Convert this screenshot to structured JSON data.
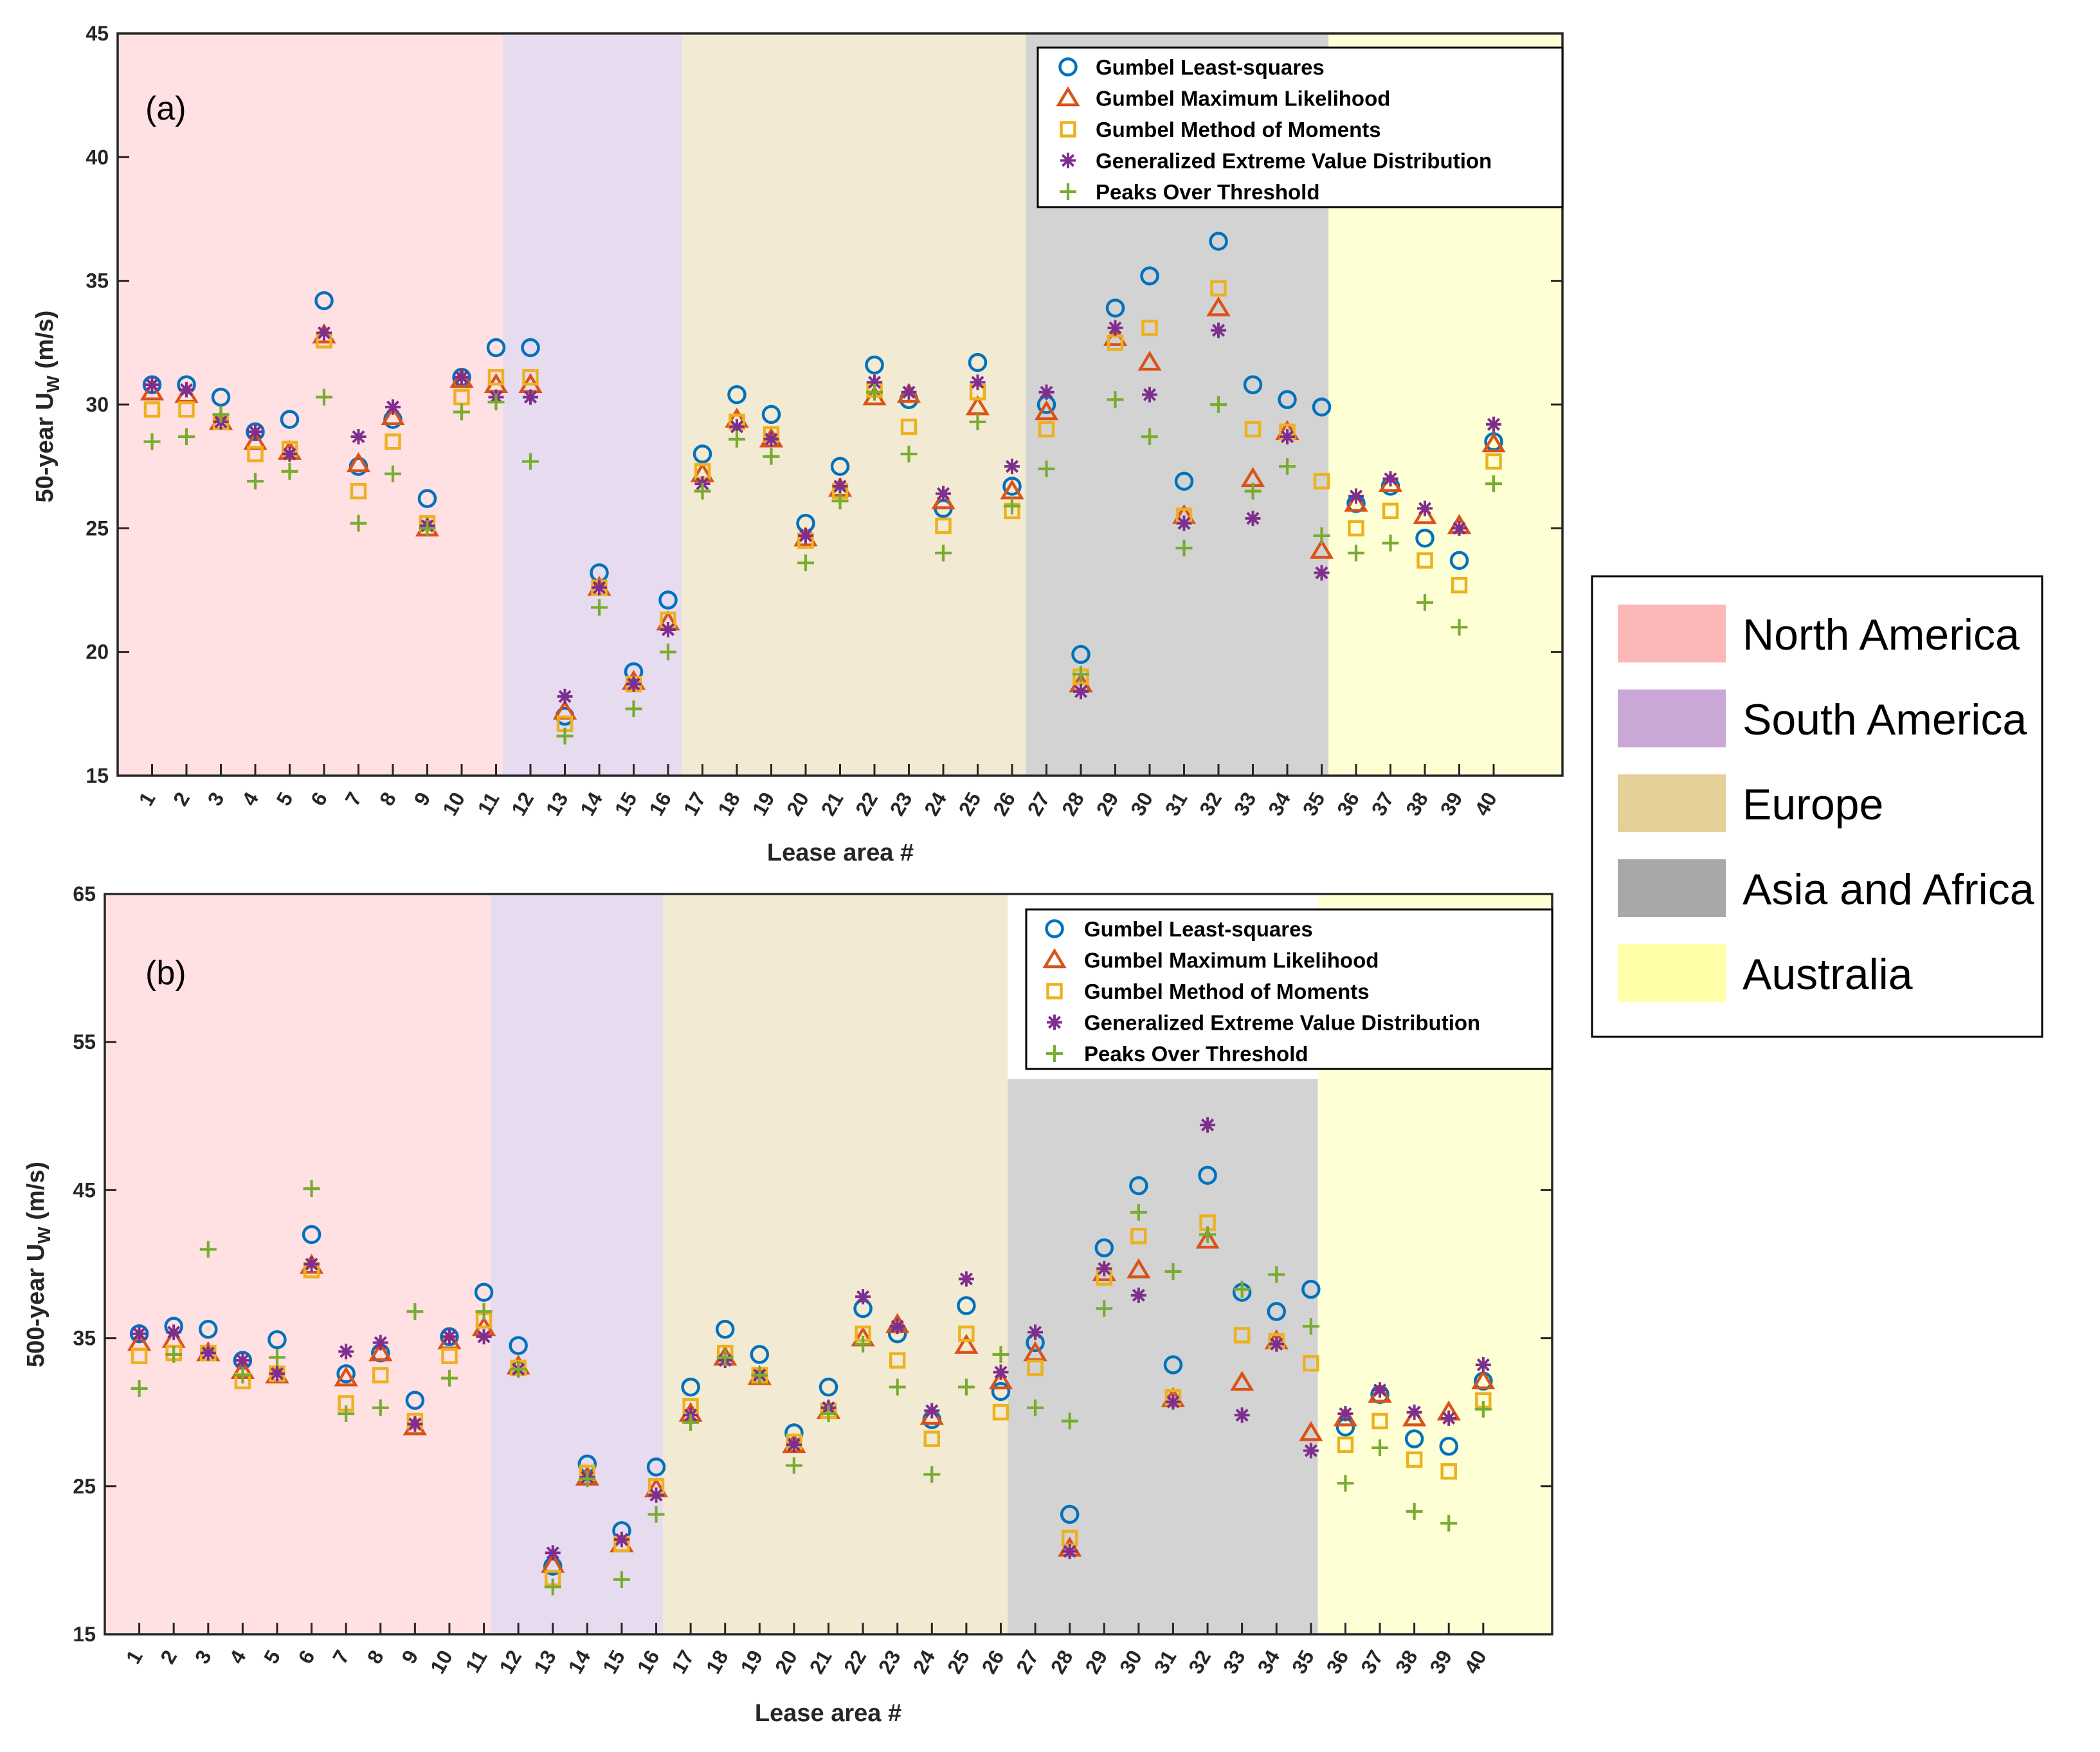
{
  "chart_data": [
    {
      "type": "scatter",
      "panel_label": "(a)",
      "xlabel": "Lease area #",
      "ylabel": "50-year U",
      "ylabel_sub": "W",
      "ylabel_unit": " (m/s)",
      "ylim": [
        15,
        45
      ],
      "yticks": [
        15,
        20,
        25,
        30,
        35,
        40,
        45
      ],
      "xlim": [
        0,
        42
      ],
      "x": [
        1,
        2,
        3,
        4,
        5,
        6,
        7,
        8,
        9,
        10,
        11,
        12,
        13,
        14,
        15,
        16,
        17,
        18,
        19,
        20,
        21,
        22,
        23,
        24,
        25,
        26,
        27,
        28,
        29,
        30,
        31,
        32,
        33,
        34,
        35,
        36,
        37,
        38,
        39,
        40
      ],
      "regions": [
        {
          "name": "North America",
          "from": 0,
          "to": 11.2
        },
        {
          "name": "South America",
          "from": 11.2,
          "to": 16.4
        },
        {
          "name": "Europe",
          "from": 16.4,
          "to": 26.4
        },
        {
          "name": "Asia and Africa",
          "from": 26.4,
          "to": 35.2
        },
        {
          "name": "Australia",
          "from": 35.2,
          "to": 42
        }
      ],
      "series": [
        {
          "name": "Gumbel Least-squares",
          "marker": "circle",
          "values": [
            30.8,
            30.8,
            30.3,
            28.9,
            29.4,
            34.2,
            27.5,
            29.4,
            26.2,
            31.1,
            32.3,
            32.3,
            17.4,
            23.2,
            19.2,
            22.1,
            28.0,
            30.4,
            29.6,
            25.2,
            27.5,
            31.6,
            30.2,
            25.8,
            31.7,
            26.7,
            30.0,
            19.9,
            33.9,
            35.2,
            26.9,
            36.6,
            30.8,
            30.2,
            29.9,
            26.0,
            26.7,
            24.6,
            23.7,
            28.5
          ]
        },
        {
          "name": "Gumbel Maximum Likelihood",
          "marker": "triangle",
          "values": [
            30.5,
            30.4,
            29.3,
            28.5,
            28.1,
            32.8,
            27.6,
            29.5,
            25.0,
            31.0,
            30.8,
            30.8,
            17.6,
            22.6,
            18.8,
            21.2,
            27.2,
            29.4,
            28.6,
            24.6,
            26.6,
            30.3,
            30.4,
            26.1,
            29.9,
            26.5,
            29.7,
            18.7,
            32.7,
            31.7,
            25.5,
            33.9,
            27.0,
            28.9,
            24.1,
            26.0,
            26.8,
            25.5,
            25.1,
            28.4
          ]
        },
        {
          "name": "Gumbel Method of Moments",
          "marker": "square",
          "values": [
            29.8,
            29.8,
            29.3,
            28.0,
            28.2,
            32.6,
            26.5,
            28.5,
            25.2,
            30.3,
            31.1,
            31.1,
            17.1,
            22.6,
            18.7,
            21.3,
            27.3,
            29.3,
            28.8,
            24.5,
            26.5,
            30.6,
            29.1,
            25.1,
            30.5,
            25.7,
            29.0,
            19.0,
            32.5,
            33.1,
            25.5,
            34.7,
            29.0,
            28.9,
            26.9,
            25.0,
            25.7,
            23.7,
            22.7,
            27.7
          ]
        },
        {
          "name": "Generalized Extreme Value Distribution",
          "marker": "asterisk",
          "values": [
            30.8,
            30.6,
            29.3,
            28.9,
            28.0,
            32.9,
            28.7,
            29.9,
            25.1,
            31.1,
            30.3,
            30.3,
            18.2,
            22.6,
            18.7,
            20.9,
            26.8,
            29.1,
            28.6,
            24.7,
            26.7,
            30.9,
            30.5,
            26.4,
            30.9,
            27.5,
            30.5,
            18.4,
            33.1,
            30.4,
            25.2,
            33.0,
            25.4,
            28.7,
            23.2,
            26.3,
            27.0,
            25.8,
            25.0,
            29.2
          ]
        },
        {
          "name": "Peaks Over Threshold",
          "marker": "plus",
          "values": [
            28.5,
            28.7,
            29.6,
            26.9,
            27.3,
            30.3,
            25.2,
            27.2,
            25.0,
            29.7,
            30.1,
            27.7,
            16.6,
            21.8,
            17.7,
            20.0,
            26.5,
            28.6,
            27.9,
            23.6,
            26.1,
            30.5,
            28.0,
            24.0,
            29.3,
            25.9,
            27.4,
            19.1,
            30.2,
            28.7,
            24.2,
            30.0,
            26.5,
            27.5,
            24.7,
            24.0,
            24.4,
            22.0,
            21.0,
            26.8
          ]
        }
      ]
    },
    {
      "type": "scatter",
      "panel_label": "(b)",
      "xlabel": "Lease area #",
      "ylabel": "500-year U",
      "ylabel_sub": "W",
      "ylabel_unit": " (m/s)",
      "ylim": [
        15,
        65
      ],
      "yticks": [
        15,
        25,
        35,
        45,
        55,
        65
      ],
      "xlim": [
        0,
        42
      ],
      "x": [
        1,
        2,
        3,
        4,
        5,
        6,
        7,
        8,
        9,
        10,
        11,
        12,
        13,
        14,
        15,
        16,
        17,
        18,
        19,
        20,
        21,
        22,
        23,
        24,
        25,
        26,
        27,
        28,
        29,
        30,
        31,
        32,
        33,
        34,
        35,
        36,
        37,
        38,
        39,
        40
      ],
      "regions": [
        {
          "name": "North America",
          "from": 0,
          "to": 11.2
        },
        {
          "name": "South America",
          "from": 11.2,
          "to": 16.2
        },
        {
          "name": "Europe",
          "from": 16.2,
          "to": 26.2
        },
        {
          "name": "Asia and Africa",
          "from": 26.2,
          "to": 35.2
        },
        {
          "name": "Australia",
          "from": 35.2,
          "to": 42
        }
      ],
      "asia_region_top": 52.5,
      "series": [
        {
          "name": "Gumbel Least-squares",
          "marker": "circle",
          "values": [
            35.3,
            35.8,
            35.6,
            33.5,
            34.9,
            42.0,
            32.6,
            34.0,
            30.8,
            35.1,
            38.1,
            34.5,
            19.6,
            26.5,
            22.0,
            26.3,
            31.7,
            35.6,
            33.9,
            28.6,
            31.7,
            37.0,
            35.3,
            29.5,
            37.2,
            31.4,
            34.7,
            23.1,
            41.1,
            45.3,
            33.2,
            46.0,
            38.1,
            36.8,
            38.3,
            29.0,
            31.2,
            28.2,
            27.7,
            32.1
          ]
        },
        {
          "name": "Gumbel Maximum Likelihood",
          "marker": "triangle",
          "values": [
            34.7,
            34.9,
            34.0,
            32.8,
            32.5,
            39.9,
            32.3,
            34.0,
            29.0,
            34.8,
            35.7,
            33.1,
            19.7,
            25.6,
            21.1,
            24.8,
            29.9,
            33.7,
            32.4,
            27.8,
            30.1,
            35.0,
            35.9,
            29.7,
            34.5,
            32.1,
            34.0,
            20.8,
            39.4,
            39.6,
            30.9,
            41.6,
            32.0,
            34.8,
            28.6,
            29.6,
            31.2,
            29.6,
            30.0,
            32.1
          ]
        },
        {
          "name": "Gumbel Method of Moments",
          "marker": "square",
          "values": [
            33.8,
            34.0,
            34.0,
            32.1,
            32.6,
            39.6,
            30.6,
            32.5,
            29.4,
            33.8,
            36.2,
            33.0,
            18.8,
            25.9,
            21.1,
            25.0,
            30.4,
            34.0,
            32.5,
            28.0,
            30.1,
            35.3,
            33.5,
            28.2,
            35.3,
            30.0,
            33.0,
            21.5,
            39.1,
            41.9,
            31.0,
            42.8,
            35.2,
            34.8,
            33.3,
            27.8,
            29.4,
            26.8,
            26.0,
            30.8
          ]
        },
        {
          "name": "Generalized Extreme Value Distribution",
          "marker": "asterisk",
          "values": [
            35.3,
            35.4,
            34.0,
            33.5,
            32.6,
            40.0,
            34.1,
            34.7,
            29.2,
            35.1,
            35.1,
            32.9,
            20.5,
            25.6,
            21.4,
            24.4,
            29.8,
            33.5,
            32.5,
            27.8,
            30.3,
            37.8,
            35.8,
            30.1,
            39.0,
            32.7,
            35.4,
            20.6,
            39.7,
            37.9,
            30.7,
            49.4,
            29.8,
            34.6,
            27.4,
            29.9,
            31.5,
            30.0,
            29.6,
            33.2
          ]
        },
        {
          "name": "Peaks Over Threshold",
          "marker": "plus",
          "values": [
            31.6,
            33.9,
            41.0,
            32.5,
            33.7,
            45.1,
            29.9,
            30.3,
            36.8,
            32.3,
            36.8,
            32.9,
            18.2,
            25.5,
            18.7,
            23.1,
            29.3,
            33.7,
            32.5,
            26.4,
            29.9,
            34.6,
            31.7,
            25.8,
            31.7,
            33.9,
            30.3,
            29.4,
            37.0,
            43.5,
            39.5,
            42.0,
            38.3,
            39.3,
            35.8,
            25.2,
            27.6,
            23.3,
            22.5,
            30.2
          ]
        }
      ]
    }
  ],
  "region_legend": {
    "items": [
      {
        "name": "North America",
        "color": "#fcb8b8"
      },
      {
        "name": "South America",
        "color": "#c9a8d8"
      },
      {
        "name": "Europe",
        "color": "#e5d09a"
      },
      {
        "name": "Asia and Africa",
        "color": "#a8a8a8"
      },
      {
        "name": "Australia",
        "color": "#ffffa8"
      }
    ]
  },
  "colors": {
    "region_fill": [
      "#ffe0e3",
      "#e7dcef",
      "#f3ead3",
      "#d3d3d3",
      "#ffffd6"
    ],
    "series": [
      "#0072bd",
      "#d95319",
      "#edb120",
      "#7e2f8e",
      "#77ac30"
    ]
  }
}
